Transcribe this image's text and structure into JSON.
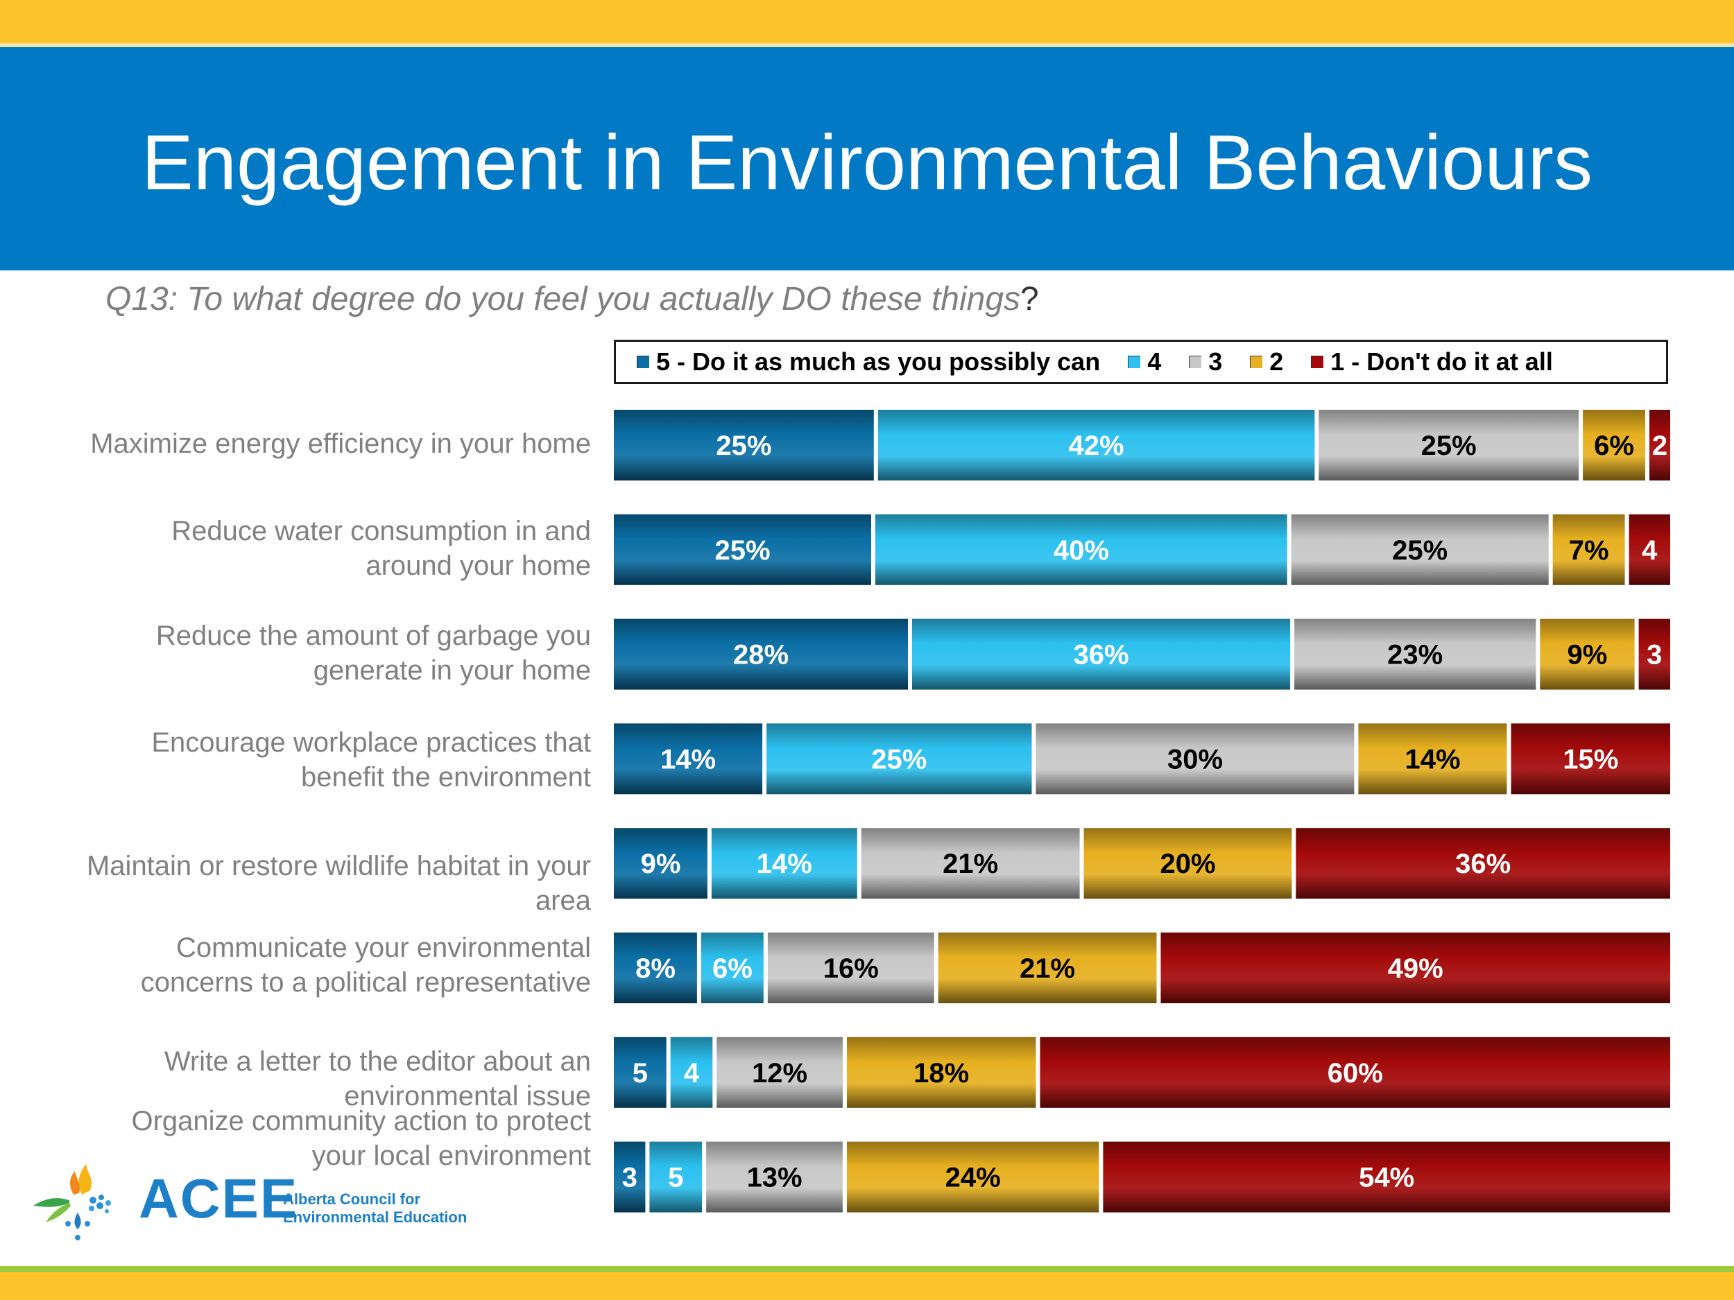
{
  "header": {
    "title": "Engagement in Environmental Behaviours",
    "question_main": "Q13: To what degree do you feel you actually DO these things",
    "question_mark": "?"
  },
  "logo": {
    "name": "ACEE",
    "line1": "Alberta Council for",
    "line2": "Environmental Education"
  },
  "chart_data": {
    "type": "bar",
    "orientation": "horizontal",
    "stacked": true,
    "percent_scale": true,
    "title": "Engagement in Environmental Behaviours",
    "legend_position": "top",
    "categories": [
      [
        "Maximize energy efficiency in your home"
      ],
      [
        "Reduce water consumption in and",
        "around your home"
      ],
      [
        "Reduce the amount of garbage you",
        "generate in your home"
      ],
      [
        "Encourage workplace practices that",
        "benefit the environment"
      ],
      [
        "Maintain or restore wildlife habitat in your",
        "area"
      ],
      [
        "Communicate your environmental",
        "concerns to a political representative"
      ],
      [
        "Write a letter to the editor about an",
        "environmental issue"
      ],
      [
        "Organize community action to protect",
        "your local environment"
      ]
    ],
    "series": [
      {
        "name": "5 - Do it as much as you possibly can",
        "color": "#0b6fa5",
        "values": [
          25,
          25,
          28,
          14,
          9,
          8,
          5,
          3
        ],
        "labels": [
          "25%",
          "25%",
          "28%",
          "14%",
          "9%",
          "8%",
          "5",
          "3"
        ]
      },
      {
        "name": "4",
        "color": "#2cc0ef",
        "values": [
          42,
          40,
          36,
          25,
          14,
          6,
          4,
          5
        ],
        "labels": [
          "42%",
          "40%",
          "36%",
          "25%",
          "14%",
          "6%",
          "4",
          "5"
        ]
      },
      {
        "name": "3",
        "color": "#c8c8c8",
        "values": [
          25,
          25,
          23,
          30,
          21,
          16,
          12,
          13
        ],
        "labels": [
          "25%",
          "25%",
          "23%",
          "30%",
          "21%",
          "16%",
          "12%",
          "13%"
        ]
      },
      {
        "name": "2",
        "color": "#e6b020",
        "values": [
          6,
          7,
          9,
          14,
          20,
          21,
          18,
          24
        ],
        "labels": [
          "6%",
          "7%",
          "9%",
          "14%",
          "20%",
          "21%",
          "18%",
          "24%"
        ]
      },
      {
        "name": "1 - Don't do it at all",
        "color": "#a40a0a",
        "values": [
          2,
          4,
          3,
          15,
          36,
          49,
          60,
          54
        ],
        "labels": [
          "2",
          "4",
          "3",
          "15%",
          "36%",
          "49%",
          "60%",
          "54%"
        ]
      }
    ]
  }
}
